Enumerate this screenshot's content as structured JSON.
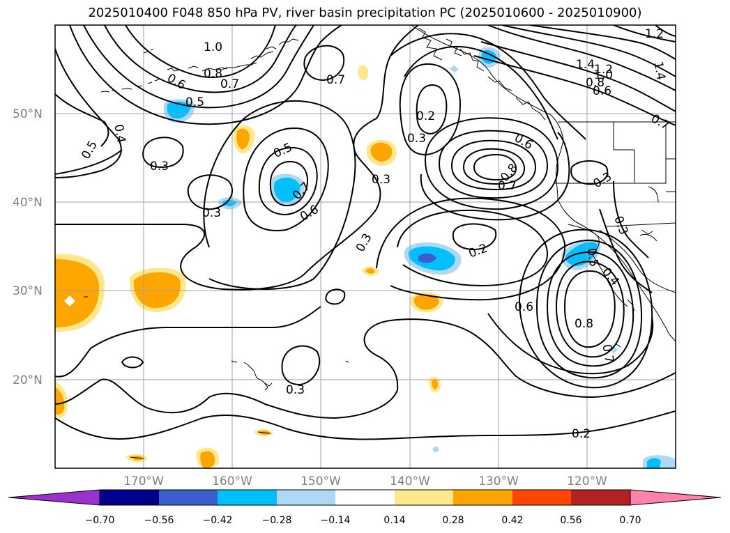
{
  "title": "2025010400 F048 850 hPa PV, river basin precipitation PC (2025010600 - 2025010900)",
  "colors": {
    "contour": "#000000",
    "grid": "#a0a0a0",
    "frame": "#000000",
    "land": "#000000"
  },
  "map": {
    "lat_labels": [
      "50°N",
      "40°N",
      "30°N",
      "20°N"
    ],
    "lon_labels": [
      "170°W",
      "160°W",
      "150°W",
      "140°W",
      "130°W",
      "120°W"
    ]
  },
  "contour_labels": [
    "1.0",
    "0.8",
    "0.6",
    "0.7",
    "0.5",
    "0.4",
    "0.5",
    "0.3",
    "0.3",
    "0.5",
    "0.7",
    "0.6",
    "0.7",
    "0.2",
    "0.3",
    "0.3",
    "0.3",
    "0.2",
    "0.6",
    "0.8",
    "0.7",
    "0.3",
    "1.2",
    "1.4",
    "1.2",
    "1.0",
    "0.8",
    "0.6",
    "1.4",
    "0.7",
    "0.3",
    "0.5",
    "0.4",
    "0.6",
    "0.8",
    "0.7",
    "0.3",
    "0.2"
  ],
  "colorbar": {
    "ticks": [
      "−0.70",
      "−0.56",
      "−0.42",
      "−0.28",
      "−0.14",
      "0.14",
      "0.28",
      "0.42",
      "0.56",
      "0.70"
    ],
    "colors": [
      "#9932cc",
      "#00008b",
      "#3a5fcd",
      "#00bfff",
      "#add8f6",
      "#ffffff",
      "#ffe88c",
      "#ffa500",
      "#ff4500",
      "#b22222",
      "#ff82ab"
    ]
  }
}
